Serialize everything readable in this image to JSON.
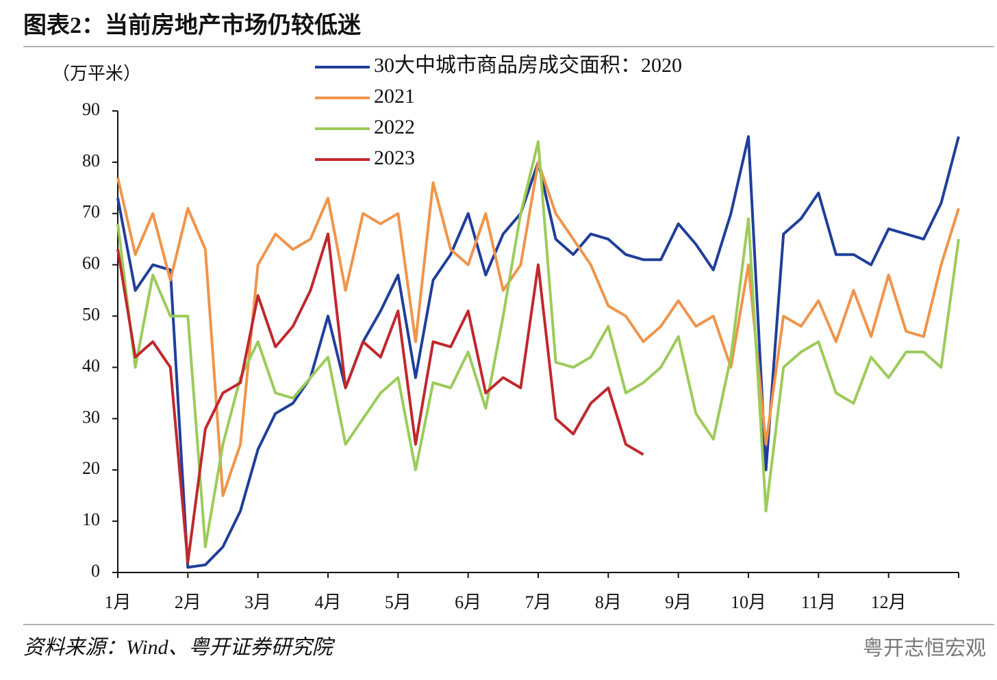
{
  "chart_data": {
    "type": "line",
    "title": "图表2：当前房地产市场仍较低迷",
    "y_label": "（万平米）",
    "source": "资料来源：Wind、粤开证券研究院",
    "watermark": "粤开志恒宏观",
    "categories": [
      "1月",
      null,
      null,
      null,
      "2月",
      null,
      null,
      null,
      "3月",
      null,
      null,
      null,
      "4月",
      null,
      null,
      null,
      "5月",
      null,
      null,
      null,
      "6月",
      null,
      null,
      null,
      "7月",
      null,
      null,
      null,
      "8月",
      null,
      null,
      null,
      "9月",
      null,
      null,
      null,
      "10月",
      null,
      null,
      null,
      "11月",
      null,
      null,
      null,
      "12月",
      null,
      null,
      null,
      null
    ],
    "ylim": [
      0,
      90
    ],
    "yticks": [
      0,
      10,
      20,
      30,
      40,
      50,
      60,
      70,
      80,
      90
    ],
    "series": [
      {
        "name": "30大中城市商品房成交面积：2020",
        "color": "#1f3f99",
        "values": [
          73,
          55,
          60,
          59,
          1,
          1.5,
          5,
          12,
          24,
          31,
          33,
          38,
          50,
          36,
          45,
          51,
          58,
          38,
          57,
          62,
          70,
          58,
          66,
          70,
          80,
          65,
          62,
          66,
          65,
          62,
          61,
          61,
          68,
          64,
          59,
          70,
          85,
          20,
          66,
          69,
          74,
          62,
          62,
          60,
          67,
          66,
          65,
          72,
          85
        ]
      },
      {
        "name": "2021",
        "color": "#f0944a",
        "values": [
          77,
          62,
          70,
          57,
          71,
          63,
          15,
          25,
          60,
          66,
          63,
          65,
          73,
          55,
          70,
          68,
          70,
          45,
          76,
          63,
          60,
          70,
          55,
          60,
          80,
          70,
          65,
          60,
          52,
          50,
          45,
          48,
          53,
          48,
          50,
          40,
          60,
          25,
          50,
          48,
          53,
          45,
          55,
          46,
          58,
          47,
          46,
          60,
          71
        ]
      },
      {
        "name": "2022",
        "color": "#9ccb5a",
        "values": [
          68,
          40,
          58,
          50,
          50,
          5,
          25,
          38,
          45,
          35,
          34,
          38,
          42,
          25,
          30,
          35,
          38,
          20,
          37,
          36,
          43,
          32,
          50,
          70,
          84,
          41,
          40,
          42,
          48,
          35,
          37,
          40,
          46,
          31,
          26,
          42,
          69,
          12,
          40,
          43,
          45,
          35,
          33,
          42,
          38,
          43,
          43,
          40,
          65
        ]
      },
      {
        "name": "2023",
        "color": "#c0282d",
        "values": [
          63,
          42,
          45,
          40,
          2,
          28,
          35,
          37,
          54,
          44,
          48,
          55,
          66,
          36,
          45,
          42,
          51,
          25,
          45,
          44,
          51,
          35,
          38,
          36,
          60,
          30,
          27,
          33,
          36,
          25,
          23,
          null,
          null,
          null,
          null,
          null,
          null,
          null,
          null,
          null,
          null,
          null,
          null,
          null,
          null,
          null,
          null,
          null,
          null
        ]
      }
    ]
  }
}
